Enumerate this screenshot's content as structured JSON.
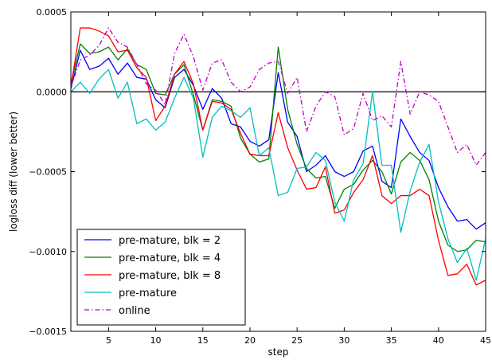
{
  "chart_data": {
    "type": "line",
    "title": "",
    "xlabel": "step",
    "ylabel": "logloss diff (lower better)",
    "xlim": [
      1,
      45
    ],
    "ylim": [
      -0.0015,
      0.0005
    ],
    "xticks": [
      5,
      10,
      15,
      20,
      25,
      30,
      35,
      40,
      45
    ],
    "xtick_labels": [
      "5",
      "10",
      "15",
      "20",
      "25",
      "30",
      "35",
      "40",
      "45"
    ],
    "yticks": [
      -0.0015,
      -0.001,
      -0.0005,
      0.0,
      0.0005
    ],
    "ytick_labels": [
      "−0.0015",
      "−0.0010",
      "−0.0005",
      "0.0000",
      "0.0005"
    ],
    "reference_line_y": 0,
    "legend_position": "lower-left",
    "x": [
      1,
      2,
      3,
      4,
      5,
      6,
      7,
      8,
      9,
      10,
      11,
      12,
      13,
      14,
      15,
      16,
      17,
      18,
      19,
      20,
      21,
      22,
      23,
      24,
      25,
      26,
      27,
      28,
      29,
      30,
      31,
      32,
      33,
      34,
      35,
      36,
      37,
      38,
      39,
      40,
      41,
      42,
      43,
      44,
      45
    ],
    "series": [
      {
        "name": "pre-mature, blk = 2",
        "color": "#0000ff",
        "style": "solid",
        "values": [
          2e-05,
          0.00026,
          0.00014,
          0.00016,
          0.00021,
          0.00011,
          0.00018,
          9e-05,
          8e-05,
          -5e-05,
          -0.0001,
          9e-05,
          0.00014,
          4e-05,
          -0.00011,
          2e-05,
          -4e-05,
          -0.0002,
          -0.00022,
          -0.00031,
          -0.00034,
          -0.0003,
          0.00012,
          -0.00019,
          -0.00028,
          -0.0005,
          -0.00046,
          -0.0004,
          -0.0005,
          -0.00053,
          -0.0005,
          -0.00037,
          -0.00034,
          -0.00056,
          -0.0006,
          -0.00017,
          -0.00028,
          -0.00038,
          -0.00043,
          -0.0006,
          -0.00072,
          -0.00081,
          -0.0008,
          -0.00086,
          -0.00082
        ]
      },
      {
        "name": "pre-mature, blk = 4",
        "color": "#008000",
        "style": "solid",
        "values": [
          5e-05,
          0.0003,
          0.00024,
          0.00025,
          0.00028,
          0.0002,
          0.00027,
          0.00017,
          0.00014,
          -1e-05,
          -2e-05,
          0.00011,
          0.00017,
          -2e-05,
          -0.00024,
          -5e-05,
          -6e-05,
          -9e-05,
          -0.00029,
          -0.00039,
          -0.00044,
          -0.00042,
          0.00028,
          -0.00011,
          -0.00033,
          -0.00048,
          -0.00054,
          -0.00053,
          -0.00073,
          -0.00061,
          -0.00058,
          -0.00049,
          -0.00043,
          -0.0005,
          -0.00064,
          -0.00044,
          -0.00038,
          -0.00043,
          -0.00055,
          -0.00081,
          -0.00096,
          -0.001,
          -0.00099,
          -0.00093,
          -0.00094
        ]
      },
      {
        "name": "pre-mature, blk = 8",
        "color": "#ff0000",
        "style": "solid",
        "values": [
          3e-05,
          0.0004,
          0.0004,
          0.00038,
          0.00035,
          0.00025,
          0.00026,
          0.00015,
          9e-05,
          -0.00018,
          -9e-05,
          0.00011,
          0.00019,
          5e-05,
          -0.00024,
          -6e-05,
          -7e-05,
          -0.00011,
          -0.00026,
          -0.00039,
          -0.0004,
          -0.0004,
          -0.00013,
          -0.00035,
          -0.00049,
          -0.00061,
          -0.0006,
          -0.00047,
          -0.00076,
          -0.00074,
          -0.00063,
          -0.00055,
          -0.0004,
          -0.00065,
          -0.0007,
          -0.00065,
          -0.00065,
          -0.00061,
          -0.00065,
          -0.00093,
          -0.00115,
          -0.00114,
          -0.00108,
          -0.00121,
          -0.00118
        ]
      },
      {
        "name": "pre-mature",
        "color": "#00bfbf",
        "style": "solid",
        "values": [
          0.0,
          6e-05,
          -1e-05,
          8e-05,
          0.00014,
          -4e-05,
          6e-05,
          -0.0002,
          -0.00017,
          -0.00024,
          -0.00019,
          -4e-05,
          9e-05,
          -4e-05,
          -0.00041,
          -0.00016,
          -9e-05,
          -0.00012,
          -0.00016,
          -0.0001,
          -0.0004,
          -0.00035,
          -0.00065,
          -0.00063,
          -0.00048,
          -0.00047,
          -0.00038,
          -0.00043,
          -0.00069,
          -0.00081,
          -0.00055,
          -0.00045,
          0.0,
          -0.00046,
          -0.00046,
          -0.00088,
          -0.00062,
          -0.00044,
          -0.00033,
          -0.00069,
          -0.00092,
          -0.00107,
          -0.00098,
          -0.00118,
          -0.00092
        ]
      },
      {
        "name": "online",
        "color": "#bf00bf",
        "style": "dashdot",
        "values": [
          3e-05,
          0.0002,
          0.00023,
          0.00029,
          0.0004,
          0.00031,
          0.00028,
          0.00017,
          5e-05,
          1e-05,
          -8e-05,
          0.00024,
          0.00036,
          0.00022,
          1e-05,
          0.00018,
          0.0002,
          6e-05,
          0.0,
          3e-05,
          0.00014,
          0.00018,
          0.00019,
          -1e-05,
          9e-05,
          -0.00025,
          -9e-05,
          0.0,
          -3e-05,
          -0.00027,
          -0.00023,
          -1e-05,
          -0.00018,
          -0.00015,
          -0.00022,
          0.00019,
          -0.00014,
          0.0,
          -2e-05,
          -6e-05,
          -0.00022,
          -0.00038,
          -0.00033,
          -0.00046,
          -0.00038
        ]
      }
    ]
  }
}
